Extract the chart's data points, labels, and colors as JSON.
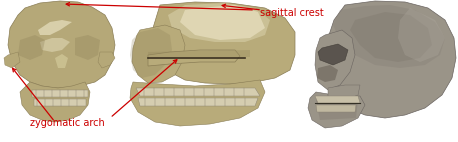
{
  "background_color": "#ffffff",
  "fig_width": 4.58,
  "fig_height": 1.42,
  "dpi": 100,
  "annotation_color": "#cc0000",
  "label1_text": "sagittal crest",
  "label2_text": "zygomatic arch",
  "skull1_color_base": "#b5a878",
  "skull1_color_dark": "#8a7d55",
  "skull1_color_light": "#d8cfa0",
  "skull1_color_white": "#e8e0c0",
  "skull2_color_base": "#b8ab7a",
  "skull2_color_dark": "#8a7d55",
  "skull2_color_light": "#cec49a",
  "skull3_color_base": "#9a9488",
  "skull3_color_dark": "#6a6460",
  "skull3_color_light": "#b8b2a8",
  "teeth_color": "#d5cdb0",
  "teeth_dark": "#888070"
}
